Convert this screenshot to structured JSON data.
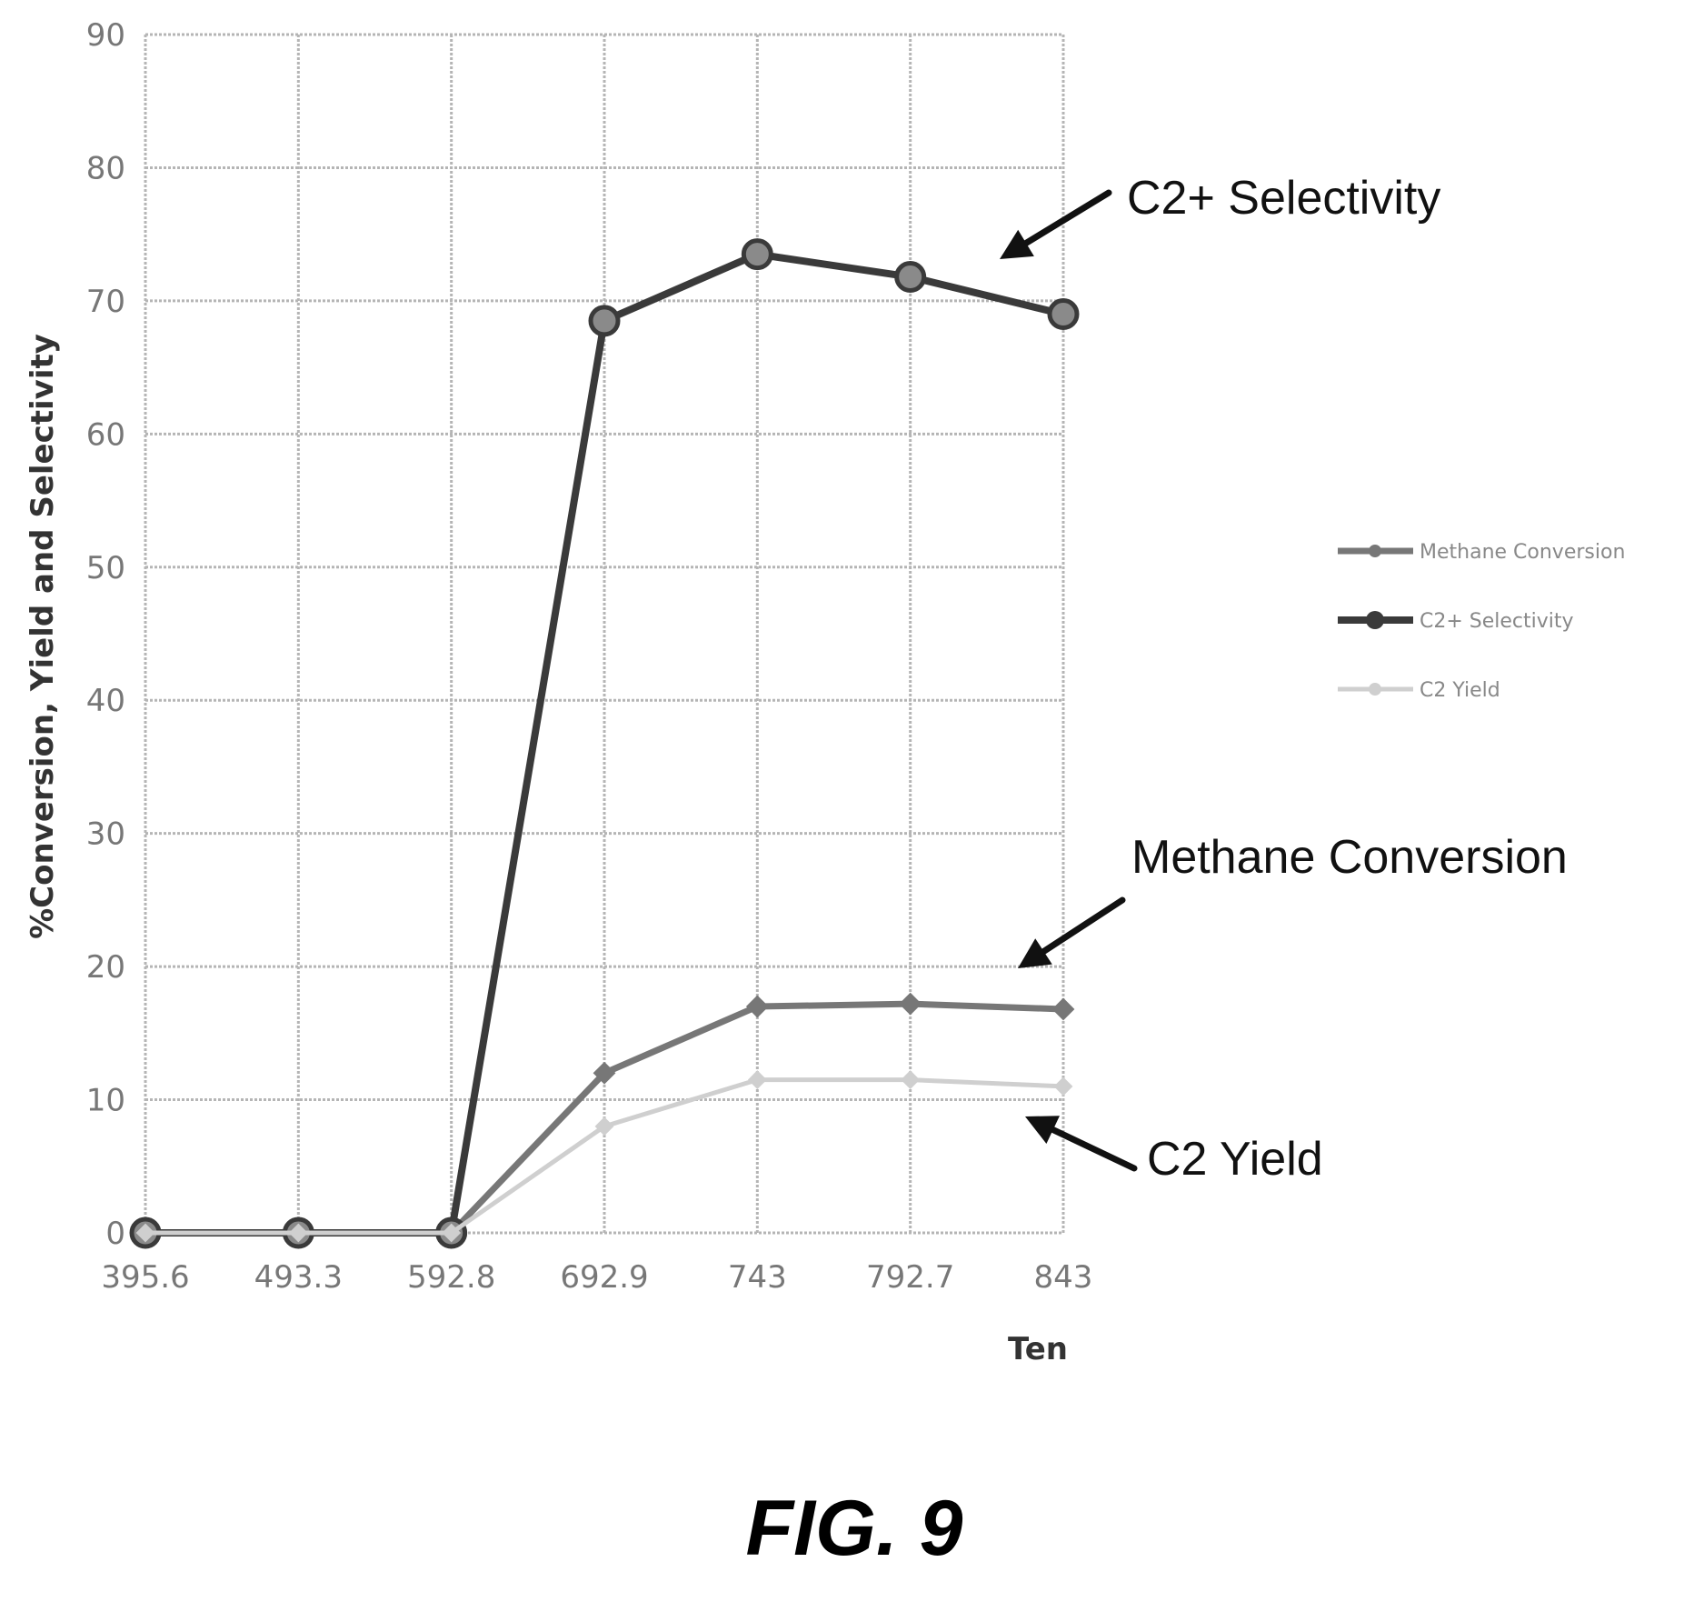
{
  "chart_data": {
    "type": "line",
    "title": "",
    "xlabel": "Ten",
    "ylabel": "%Conversion, Yield and Selectivity",
    "categories": [
      "395.6",
      "493.3",
      "592.8",
      "692.9",
      "743",
      "792.7",
      "843"
    ],
    "ylim": [
      0,
      90
    ],
    "yticks": [
      0,
      10,
      20,
      30,
      40,
      50,
      60,
      70,
      80,
      90
    ],
    "grid": true,
    "legend_position": "right",
    "series": [
      {
        "name": "Methane Conversion",
        "color": "#777777",
        "values": [
          0,
          0,
          0,
          12,
          17,
          17.2,
          16.8
        ]
      },
      {
        "name": "C2+ Selectivity",
        "color": "#3a3a3a",
        "values": [
          0,
          0,
          0,
          68.5,
          73.5,
          71.8,
          69
        ]
      },
      {
        "name": "C2 Yield",
        "color": "#cfcfcf",
        "values": [
          0,
          0,
          0,
          8,
          11.5,
          11.5,
          11
        ]
      }
    ],
    "annotations": [
      {
        "text": "C2+ Selectivity",
        "target": "C2+ Selectivity"
      },
      {
        "text": "Methane Conversion",
        "target": "Methane Conversion"
      },
      {
        "text": "C2 Yield",
        "target": "C2 Yield"
      }
    ]
  },
  "figure_label": "FIG. 9"
}
